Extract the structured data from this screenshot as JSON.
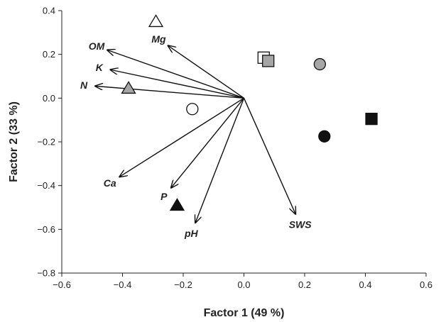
{
  "chart_data": {
    "type": "scatter",
    "title": "",
    "xlabel": "Factor 1 (49 %)",
    "ylabel": "Factor 2 (33 %)",
    "xlim": [
      -0.6,
      0.6
    ],
    "ylim": [
      -0.8,
      0.4
    ],
    "x_ticks": [
      "−0.6",
      "−0.4",
      "−0.2",
      "0.0",
      "0.2",
      "0.4",
      "0.6"
    ],
    "y_ticks": [
      "0.4",
      "0.2",
      "0.0",
      "−0.2",
      "−0.4",
      "−0.6",
      "−0.8"
    ],
    "x_tick_values": [
      -0.6,
      -0.4,
      -0.2,
      0.0,
      0.2,
      0.4,
      0.6
    ],
    "y_tick_values": [
      0.4,
      0.2,
      0.0,
      -0.2,
      -0.4,
      -0.6,
      -0.8
    ],
    "grid": false,
    "vectors": [
      {
        "label": "OM",
        "x": -0.45,
        "y": 0.22
      },
      {
        "label": "Mg",
        "x": -0.25,
        "y": 0.24
      },
      {
        "label": "K",
        "x": -0.44,
        "y": 0.13
      },
      {
        "label": "N",
        "x": -0.49,
        "y": 0.055
      },
      {
        "label": "Ca",
        "x": -0.41,
        "y": -0.36
      },
      {
        "label": "P",
        "x": -0.24,
        "y": -0.41
      },
      {
        "label": "pH",
        "x": -0.16,
        "y": -0.57
      },
      {
        "label": "SWS",
        "x": 0.17,
        "y": -0.53
      }
    ],
    "points": [
      {
        "marker": "triangle",
        "fill": "open",
        "x": -0.29,
        "y": 0.35
      },
      {
        "marker": "triangle",
        "fill": "grey",
        "x": -0.38,
        "y": 0.045
      },
      {
        "marker": "triangle",
        "fill": "black",
        "x": -0.22,
        "y": -0.49
      },
      {
        "marker": "circle",
        "fill": "open",
        "x": -0.17,
        "y": -0.05
      },
      {
        "marker": "circle",
        "fill": "grey",
        "x": 0.25,
        "y": 0.155
      },
      {
        "marker": "circle",
        "fill": "black",
        "x": 0.265,
        "y": -0.175
      },
      {
        "marker": "square",
        "fill": "open",
        "x": 0.065,
        "y": 0.185
      },
      {
        "marker": "square",
        "fill": "grey",
        "x": 0.08,
        "y": 0.17
      },
      {
        "marker": "square",
        "fill": "black",
        "x": 0.42,
        "y": -0.095
      }
    ],
    "colors": {
      "open": "#ffffff",
      "grey": "#a6a6a6",
      "black": "#111111",
      "stroke": "#111111"
    }
  }
}
